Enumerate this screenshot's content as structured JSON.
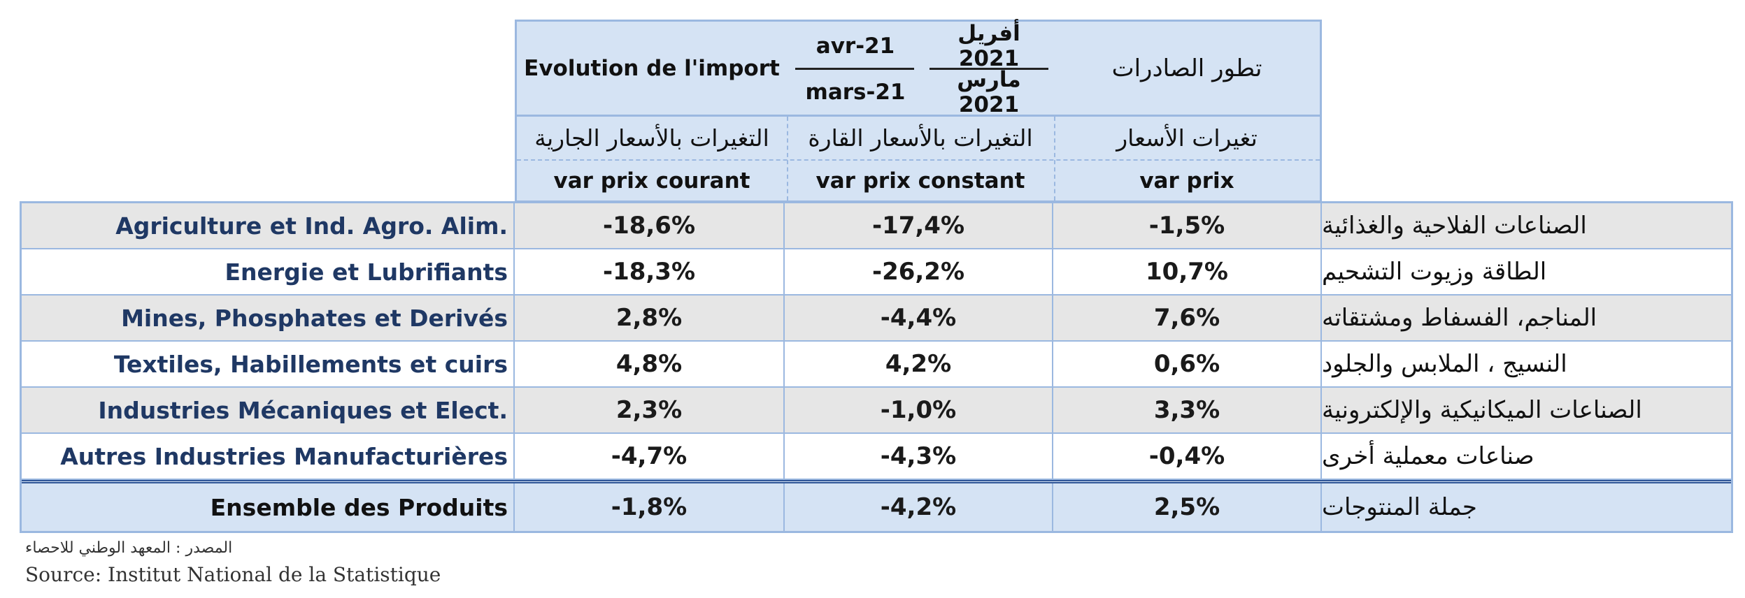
{
  "header": {
    "import_title": "Evolution de l'import",
    "date_fr_top": "avr-21",
    "date_fr_bottom": "mars-21",
    "date_ar_top": "أفريل 2021",
    "date_ar_bottom": "مارس 2021",
    "export_title": "تطور الصادرات",
    "col1_ar": "التغيرات بالأسعار الجارية",
    "col2_ar": "التغيرات بالأسعار القارة",
    "col3_ar": "تغيرات الأسعار",
    "col1_fr": "var prix courant",
    "col2_fr": "var prix constant",
    "col3_fr": "var prix"
  },
  "rows": [
    {
      "fr": "Agriculture et Ind. Agro. Alim.",
      "v1": "-18,6%",
      "v2": "-17,4%",
      "v3": "-1,5%",
      "ar": "الصناعات الفلاحية والغذائية"
    },
    {
      "fr": "Energie et Lubrifiants",
      "v1": "-18,3%",
      "v2": "-26,2%",
      "v3": "10,7%",
      "ar": "الطاقة وزيوت التشحيم"
    },
    {
      "fr": "Mines, Phosphates et Derivés",
      "v1": "2,8%",
      "v2": "-4,4%",
      "v3": "7,6%",
      "ar": "المناجم، الفسفاط ومشتقاته"
    },
    {
      "fr": "Textiles, Habillements et cuirs",
      "v1": "4,8%",
      "v2": "4,2%",
      "v3": "0,6%",
      "ar": "النسيج ، الملابس والجلود"
    },
    {
      "fr": "Industries Mécaniques et Elect.",
      "v1": "2,3%",
      "v2": "-1,0%",
      "v3": "3,3%",
      "ar": "الصناعات الميكانيكية والإلكترونية"
    },
    {
      "fr": "Autres Industries Manufacturières",
      "v1": "-4,7%",
      "v2": "-4,3%",
      "v3": "-0,4%",
      "ar": "صناعات معملية أخرى"
    }
  ],
  "total": {
    "fr": "Ensemble des Produits",
    "v1": "-1,8%",
    "v2": "-4,2%",
    "v3": "2,5%",
    "ar": "جملة المنتوجات"
  },
  "source": {
    "ar": "المصدر : المعهد الوطني للاحصاء",
    "fr": "Source: Institut National de la Statistique"
  },
  "colors": {
    "header_bg": "#d5e3f4",
    "border": "#9bb8e0",
    "alt_row": "#e6e6e6",
    "label_fr": "#1f3864"
  }
}
